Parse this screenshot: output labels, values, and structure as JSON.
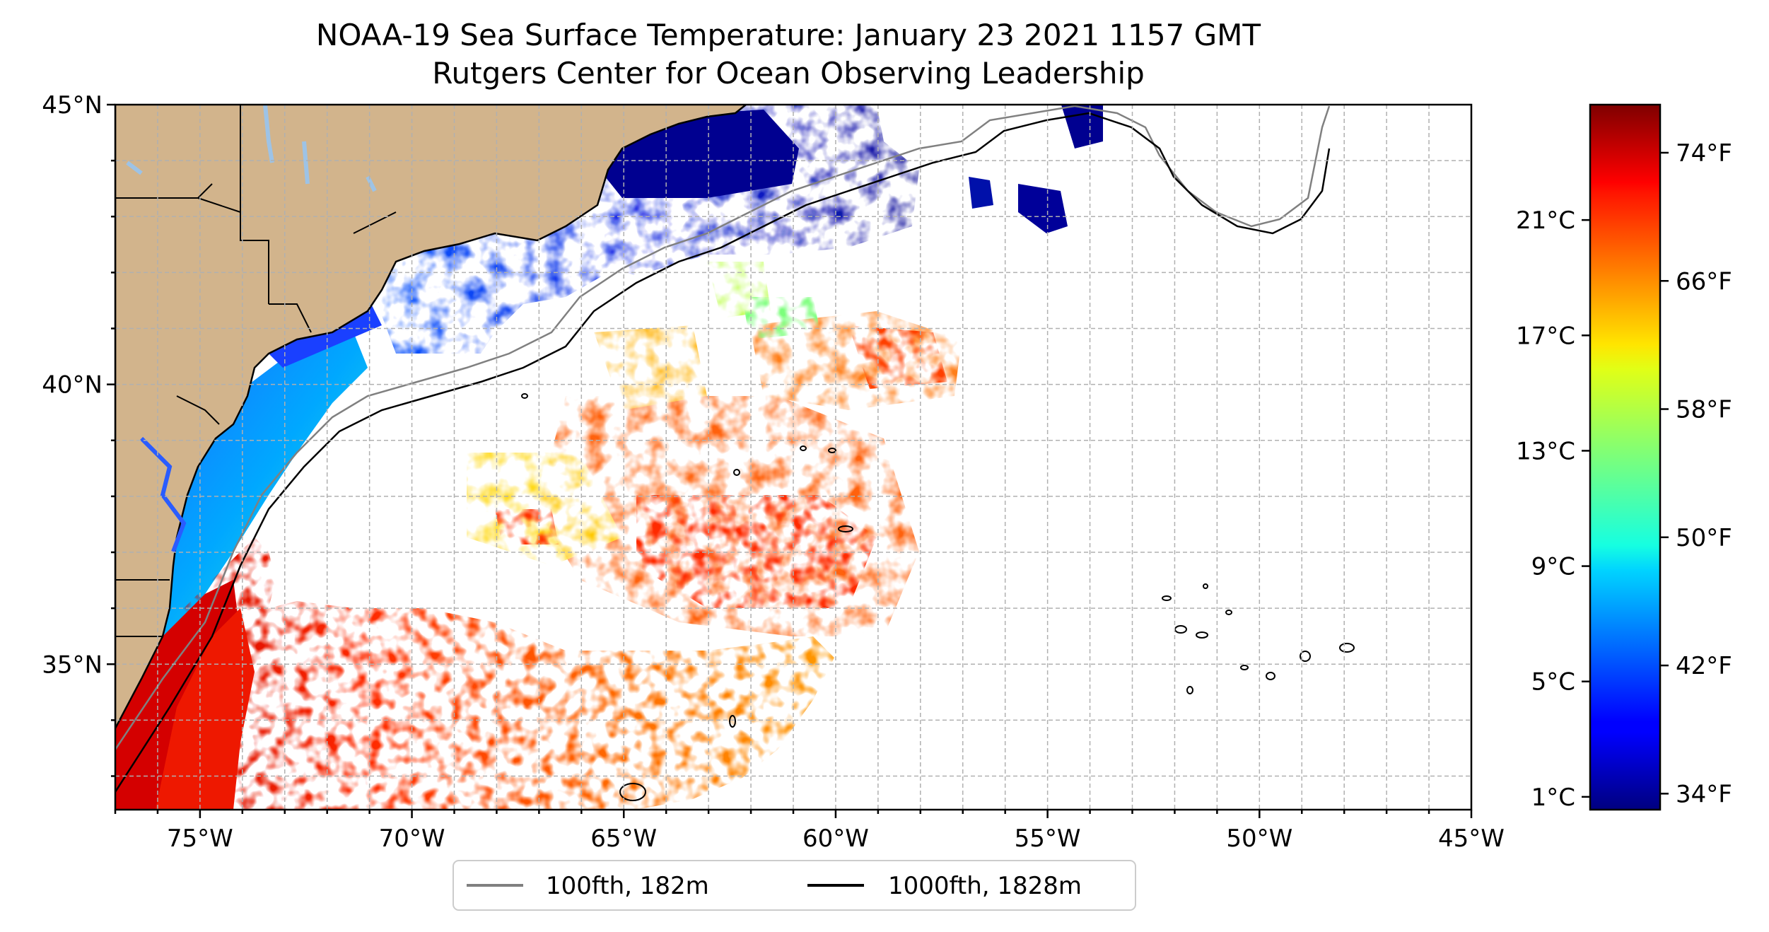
{
  "title": {
    "line1": "NOAA-19 Sea Surface Temperature: January 23 2021 1157 GMT",
    "line2": "Rutgers Center for Ocean Observing Leadership"
  },
  "map": {
    "lon_range": [
      -77,
      -45
    ],
    "lat_range": [
      32.4,
      45
    ],
    "lat_tick_labels": [
      {
        "lat": 45,
        "label": "45°N"
      },
      {
        "lat": 40,
        "label": "40°N"
      },
      {
        "lat": 35,
        "label": "35°N"
      }
    ],
    "lon_tick_labels": [
      {
        "lon": -75,
        "label": "75°W"
      },
      {
        "lon": -70,
        "label": "70°W"
      },
      {
        "lon": -65,
        "label": "65°W"
      },
      {
        "lon": -60,
        "label": "60°W"
      },
      {
        "lon": -55,
        "label": "55°W"
      },
      {
        "lon": -50,
        "label": "50°W"
      },
      {
        "lon": -45,
        "label": "45°W"
      }
    ],
    "grid": true,
    "grid_spacing_deg": 1,
    "land_color": "#d2b48c",
    "lake_color": "#9dc3e6",
    "water_color": "#ffffff"
  },
  "legend": {
    "placement": "bottom-center",
    "entries": [
      {
        "label": "100fth, 182m",
        "color": "#808080"
      },
      {
        "label": "1000fth, 1828m",
        "color": "#000000"
      }
    ]
  },
  "colorbar": {
    "colormap": "jet",
    "celsius_labels": [
      {
        "value": 1,
        "label": "1°C"
      },
      {
        "value": 5,
        "label": "5°C"
      },
      {
        "value": 9,
        "label": "9°C"
      },
      {
        "value": 13,
        "label": "13°C"
      },
      {
        "value": 17,
        "label": "17°C"
      },
      {
        "value": 21,
        "label": "21°C"
      }
    ],
    "fahrenheit_labels": [
      {
        "value": 34,
        "label": "34°F"
      },
      {
        "value": 42,
        "label": "42°F"
      },
      {
        "value": 50,
        "label": "50°F"
      },
      {
        "value": 58,
        "label": "58°F"
      },
      {
        "value": 66,
        "label": "66°F"
      },
      {
        "value": 74,
        "label": "74°F"
      }
    ],
    "range_f": [
      33,
      77
    ]
  }
}
